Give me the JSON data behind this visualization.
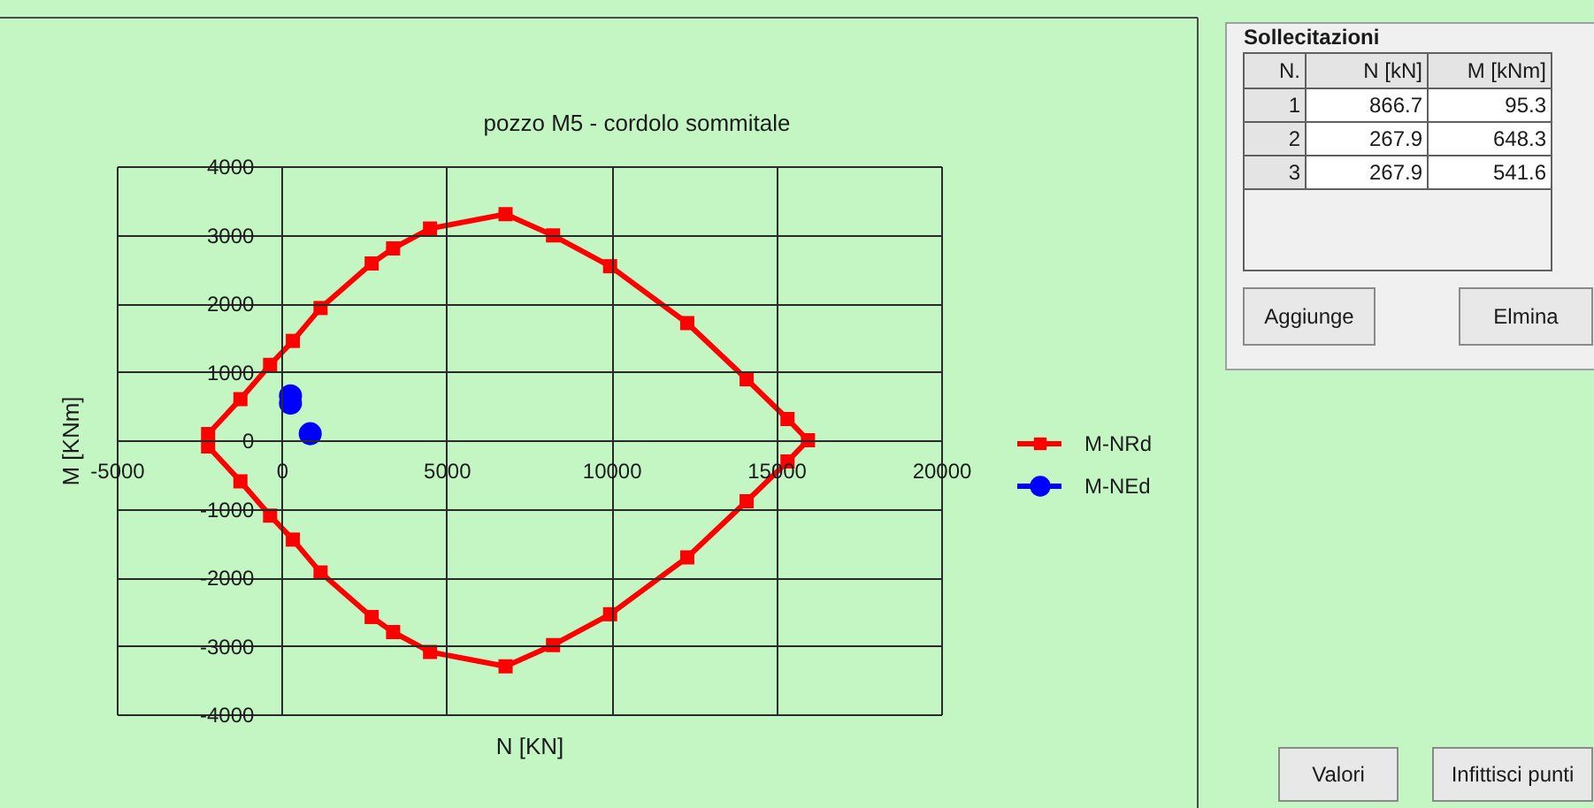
{
  "chart_data": {
    "type": "line",
    "title": "pozzo M5 - cordolo sommitale",
    "xlabel": "N [KN]",
    "ylabel": "M [KNm]",
    "xlim": [
      -5000,
      20000
    ],
    "xticks": [
      -5000,
      0,
      5000,
      10000,
      15000,
      20000
    ],
    "ylim": [
      -4000,
      4000
    ],
    "yticks": [
      -4000,
      -3000,
      -2000,
      -1000,
      0,
      1000,
      2000,
      3000,
      4000
    ],
    "grid": true,
    "legend": "right",
    "series": [
      {
        "name": "M-NRd",
        "marker": "square",
        "color": "#ff0000",
        "x": [
          -2230,
          -1250,
          -350,
          340,
          1180,
          2730,
          3380,
          4500,
          6790,
          8230,
          9960,
          12300,
          14100,
          15340,
          15960,
          15340,
          14100,
          12300,
          9960,
          8230,
          6790,
          4500,
          3380,
          2730,
          1180,
          340,
          -350,
          -1250,
          -2230
        ],
        "values": [
          90,
          600,
          1100,
          1450,
          1930,
          2580,
          2800,
          3090,
          3300,
          2990,
          2540,
          1710,
          890,
          310,
          0,
          -310,
          -890,
          -1710,
          -2540,
          -2990,
          -3300,
          -3090,
          -2800,
          -2580,
          -1930,
          -1450,
          -1100,
          -600,
          -90
        ]
      },
      {
        "name": "M-NEd",
        "type": "scatter",
        "marker": "circle",
        "color": "#0000ff",
        "x": [
          866.7,
          267.9,
          267.9
        ],
        "values": [
          95.3,
          648.3,
          541.6
        ]
      }
    ],
    "annotations": [
      "Sollecitazioni",
      "N.",
      "N [kN]",
      "M [kNm]",
      "1",
      "866.7",
      "95.3",
      "2",
      "267.9",
      "648.3",
      "3",
      "267.9",
      "541.6",
      "Aggiunge",
      "Elmina",
      "Valori",
      "Infittisci punti"
    ]
  }
}
